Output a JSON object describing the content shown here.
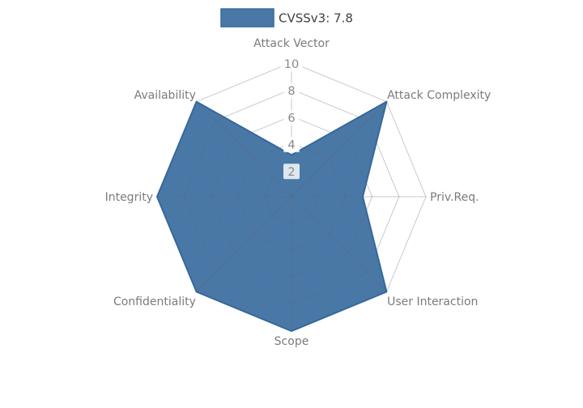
{
  "chart_data": {
    "type": "radar",
    "title": "",
    "legend": {
      "label": "CVSSv3: 7.8",
      "position": "top-center"
    },
    "axes": [
      "Attack Vector",
      "Attack Complexity",
      "Priv.Req.",
      "User Interaction",
      "Scope",
      "Confidentiality",
      "Integrity",
      "Availability"
    ],
    "series": [
      {
        "name": "CVSSv3: 7.8",
        "values": [
          3.1,
          10,
          5.3,
          10,
          10,
          10,
          10,
          10
        ]
      }
    ],
    "radial_ticks": [
      2,
      4,
      6,
      8,
      10
    ],
    "rlim": [
      0,
      10
    ],
    "grid": "spiderweb",
    "colors": {
      "fill": "#4A78A6",
      "stroke": "#35689B",
      "grid": "#5C6378",
      "axis_label": "#7B7B7B",
      "tick_label": "#8A8A8A",
      "legend_text": "#404040",
      "background": "#FFFFFF"
    }
  }
}
